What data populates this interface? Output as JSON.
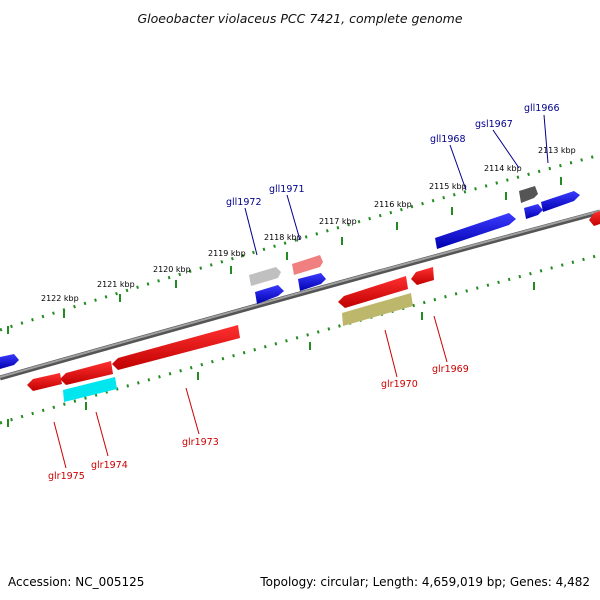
{
  "title": "Gloeobacter violaceus PCC 7421, complete genome",
  "footer": {
    "accession": "Accession: NC_005125",
    "summary": "Topology: circular; Length: 4,659,019 bp; Genes: 4,482"
  },
  "scale_labels": [
    "2113 kbp",
    "2114 kbp",
    "2115 kbp",
    "2116 kbp",
    "2117 kbp",
    "2118 kbp",
    "2119 kbp",
    "2120 kbp",
    "2121 kbp",
    "2122 kbp"
  ],
  "genes_forward": [
    {
      "name": "gll1966",
      "color": "#0000ee"
    },
    {
      "name": "gsl1967",
      "color": "#0000ee"
    },
    {
      "name": "gll1968",
      "color": "#0000ee"
    },
    {
      "name": "gll1971",
      "color": "#0000ee"
    },
    {
      "name": "gll1972",
      "color": "#0000ee"
    }
  ],
  "genes_reverse": [
    {
      "name": "glr1969",
      "color": "#ee0000"
    },
    {
      "name": "glr1970",
      "color": "#ee0000"
    },
    {
      "name": "glr1973",
      "color": "#ee0000"
    },
    {
      "name": "glr1974",
      "color": "#ee0000"
    },
    {
      "name": "glr1975",
      "color": "#ee0000"
    }
  ],
  "colors": {
    "backbone": "#808080",
    "forward_gene": "#0000ee",
    "reverse_gene": "#ee0000",
    "pseudo_gene_gray": "#c0c0c0",
    "dark_gene": "#555555",
    "cyan_gene": "#00e5ee",
    "olive_gene": "#bdb76b",
    "pink_gene": "#f08080",
    "tick_green": "#228b22"
  }
}
